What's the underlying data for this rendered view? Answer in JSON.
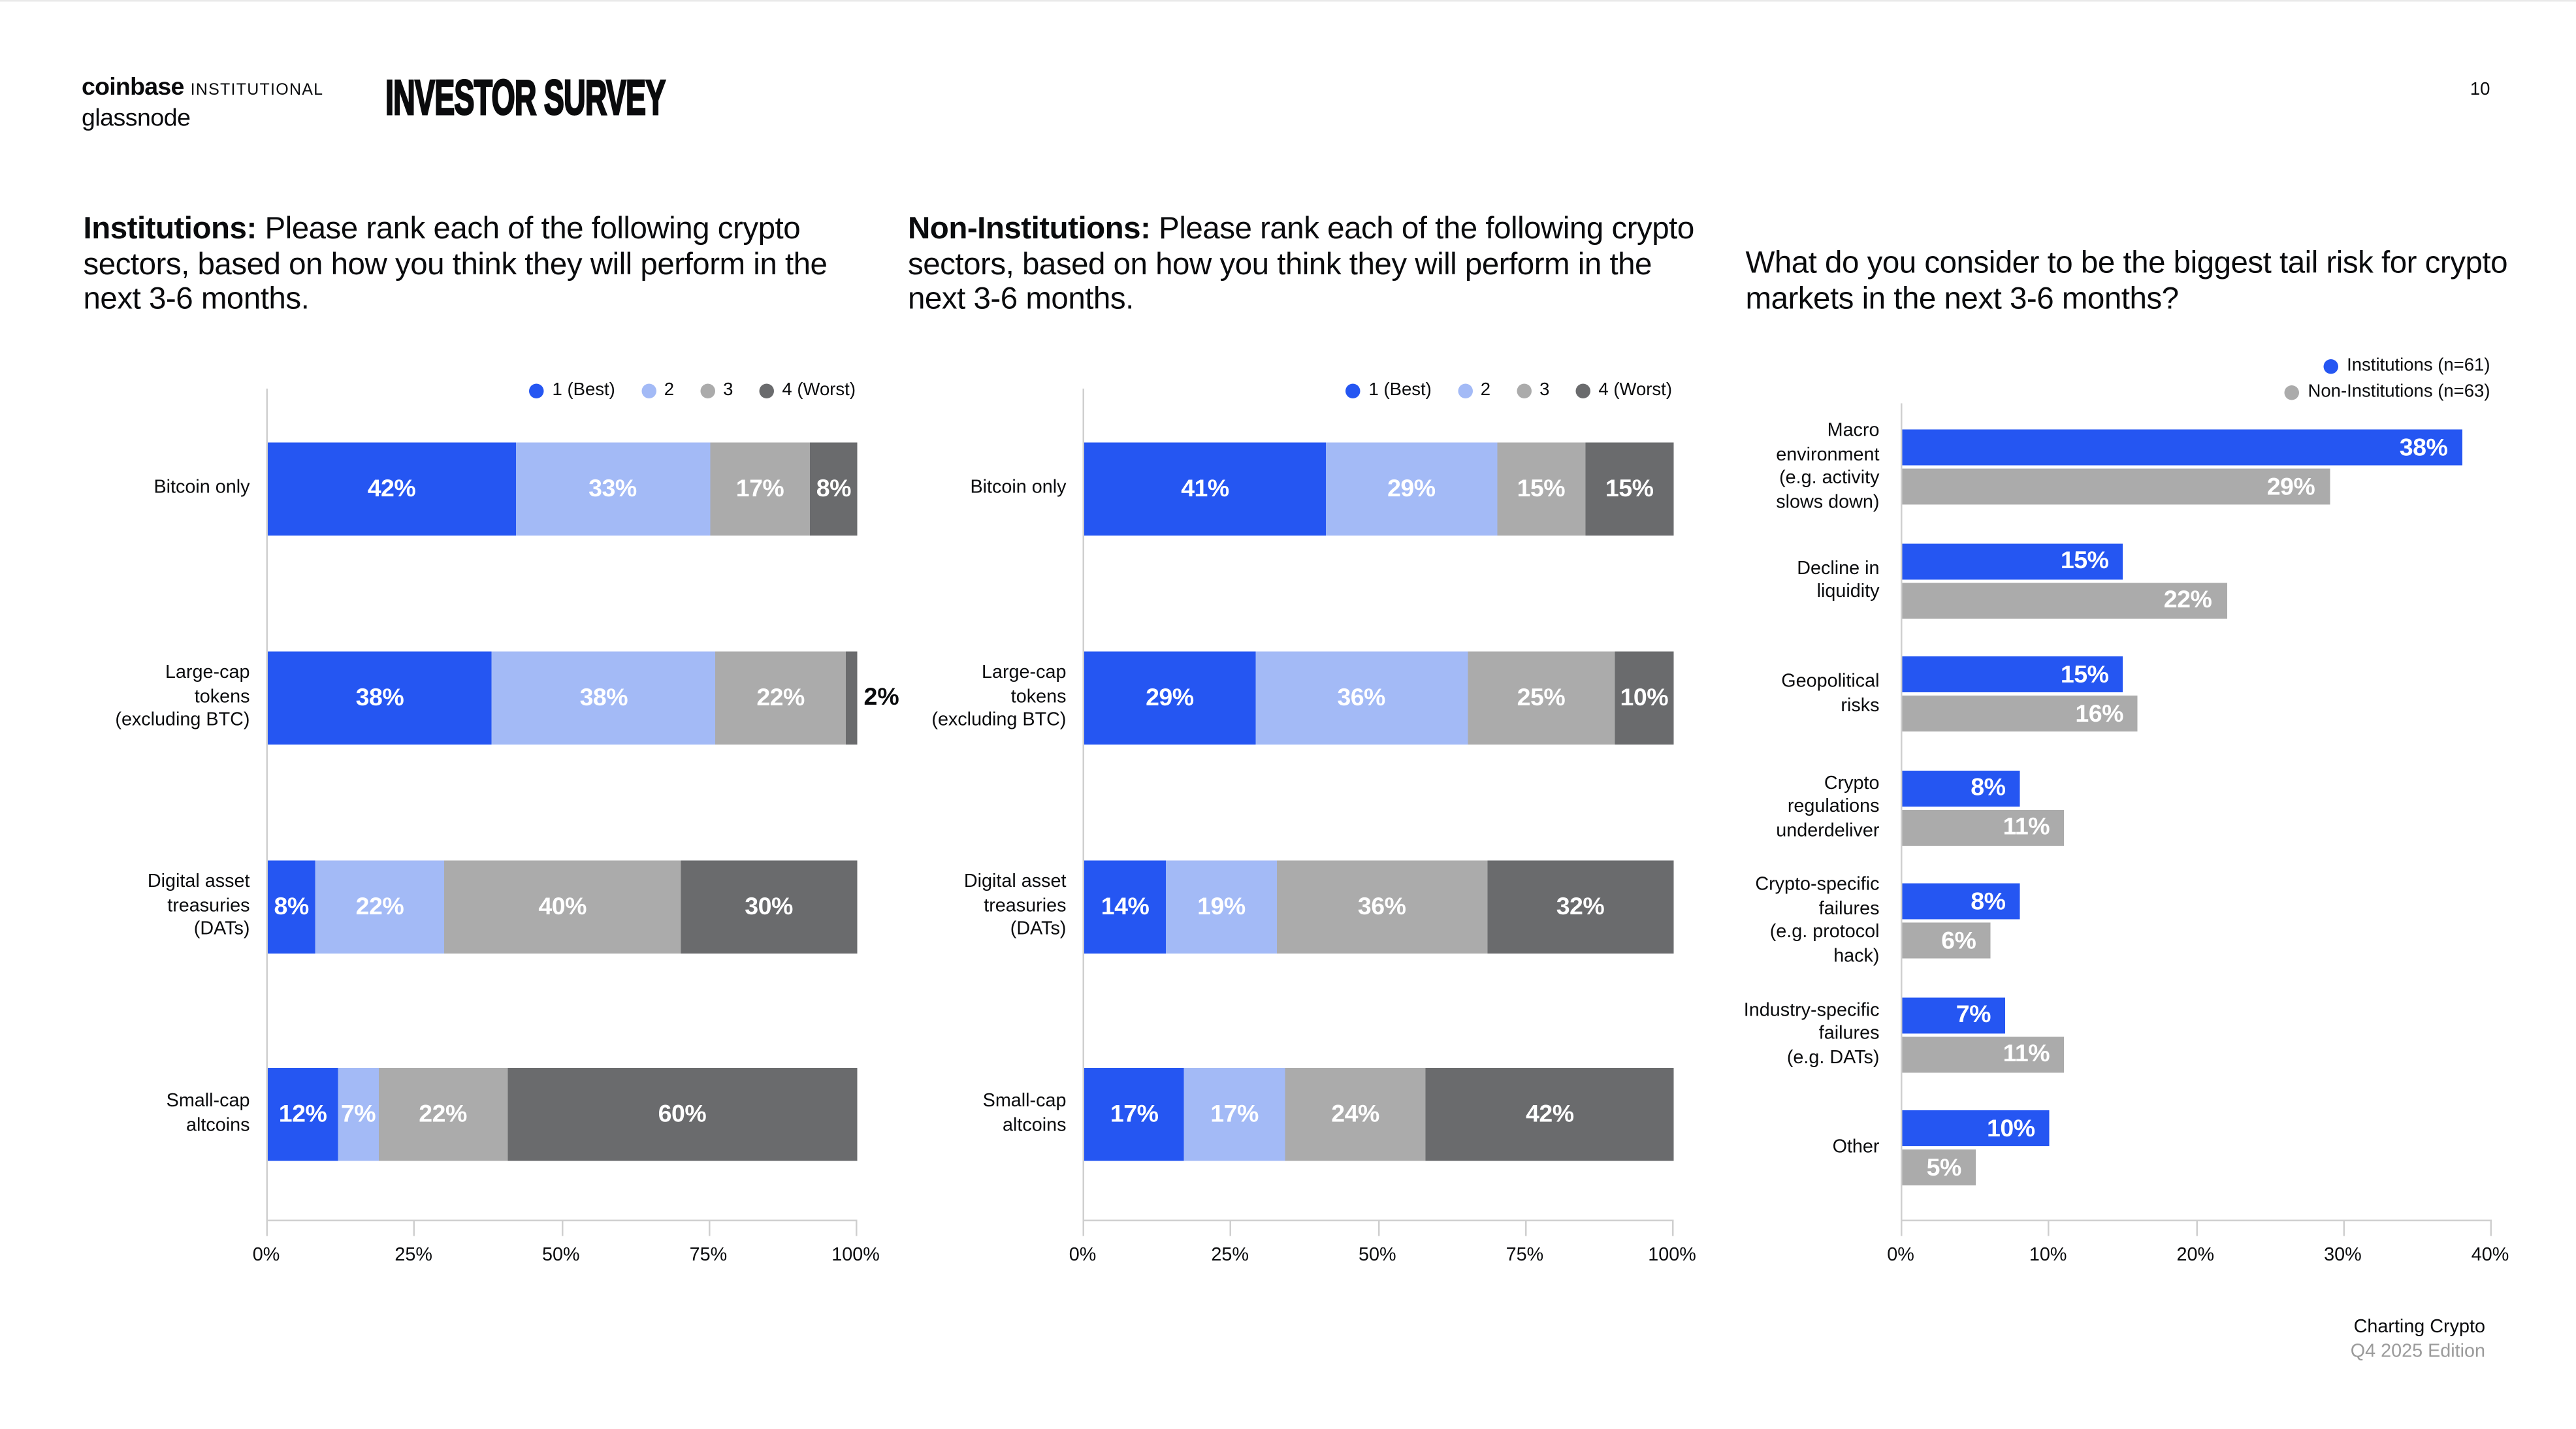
{
  "header": {
    "brand_line1_left": "coinbase",
    "brand_line1_right": "INSTITUTIONAL",
    "brand_line2": "glassnode",
    "doc_title": "INVESTOR SURVEY",
    "page_number": "10"
  },
  "footer": {
    "line1": "Charting Crypto",
    "line2": "Q4 2025 Edition"
  },
  "colors": {
    "blue": "#2556F2",
    "light_blue": "#A3BAF6",
    "gray": "#ABABAB",
    "dark_gray": "#6A6B6D",
    "axis": "#CFCFCF",
    "text": "#0A0B0D",
    "muted": "#9B9B9B"
  },
  "chart_data": [
    {
      "type": "bar",
      "variant": "stacked-horizontal",
      "title_bold": "Institutions:",
      "title_rest": " Please rank each of the following crypto sectors, based on how you think they will perform in the next 3-6 months.",
      "legend_position": "top-right",
      "categories": [
        "Bitcoin only",
        "Large-cap tokens (excluding BTC)",
        "Digital asset treasuries (DATs)",
        "Small-cap altcoins"
      ],
      "category_lines": [
        [
          "Bitcoin only"
        ],
        [
          "Large-cap",
          "tokens",
          "(excluding BTC)"
        ],
        [
          "Digital asset",
          "treasuries",
          "(DATs)"
        ],
        [
          "Small-cap",
          "altcoins"
        ]
      ],
      "series": [
        {
          "name": "1 (Best)",
          "color_key": "blue",
          "values": [
            42,
            38,
            8,
            12
          ]
        },
        {
          "name": "2",
          "color_key": "light_blue",
          "values": [
            33,
            38,
            22,
            7
          ]
        },
        {
          "name": "3",
          "color_key": "gray",
          "values": [
            17,
            22,
            40,
            22
          ]
        },
        {
          "name": "4 (Worst)",
          "color_key": "dark_gray",
          "values": [
            8,
            2,
            30,
            60
          ]
        }
      ],
      "value_suffix": "%",
      "xlim": [
        0,
        100
      ],
      "xticks": [
        "0%",
        "25%",
        "50%",
        "75%",
        "100%"
      ],
      "grid": false
    },
    {
      "type": "bar",
      "variant": "stacked-horizontal",
      "title_bold": "Non-Institutions:",
      "title_rest": " Please rank each of the following crypto sectors, based on how you think they will perform in the next 3-6 months.",
      "legend_position": "top-right",
      "categories": [
        "Bitcoin only",
        "Large-cap tokens (excluding BTC)",
        "Digital asset treasuries (DATs)",
        "Small-cap altcoins"
      ],
      "category_lines": [
        [
          "Bitcoin only"
        ],
        [
          "Large-cap",
          "tokens",
          "(excluding BTC)"
        ],
        [
          "Digital asset",
          "treasuries",
          "(DATs)"
        ],
        [
          "Small-cap",
          "altcoins"
        ]
      ],
      "series": [
        {
          "name": "1 (Best)",
          "color_key": "blue",
          "values": [
            41,
            29,
            14,
            17
          ]
        },
        {
          "name": "2",
          "color_key": "light_blue",
          "values": [
            29,
            36,
            19,
            17
          ]
        },
        {
          "name": "3",
          "color_key": "gray",
          "values": [
            15,
            25,
            36,
            24
          ]
        },
        {
          "name": "4 (Worst)",
          "color_key": "dark_gray",
          "values": [
            15,
            10,
            32,
            42
          ]
        }
      ],
      "value_suffix": "%",
      "xlim": [
        0,
        100
      ],
      "xticks": [
        "0%",
        "25%",
        "50%",
        "75%",
        "100%"
      ],
      "grid": false
    },
    {
      "type": "bar",
      "variant": "grouped-horizontal",
      "title_bold": "",
      "title_rest": "What do you consider to be the biggest tail risk for crypto markets in the next 3-6 months?",
      "legend_position": "top-right",
      "categories": [
        "Macro environment (e.g. activity slows down)",
        "Decline in liquidity",
        "Geopolitical risks",
        "Crypto regulations underdeliver",
        "Crypto-specific failures (e.g. protocol hack)",
        "Industry-specific failures (e.g. DATs)",
        "Other"
      ],
      "category_lines": [
        [
          "Macro",
          "environment",
          "(e.g. activity",
          "slows down)"
        ],
        [
          "Decline in",
          "liquidity"
        ],
        [
          "Geopolitical",
          "risks"
        ],
        [
          "Crypto",
          "regulations",
          "underdeliver"
        ],
        [
          "Crypto-specific",
          "failures",
          "(e.g. protocol",
          "hack)"
        ],
        [
          "Industry-specific",
          "failures",
          "(e.g. DATs)"
        ],
        [
          "Other"
        ]
      ],
      "series": [
        {
          "name": "Institutions (n=61)",
          "color_key": "blue",
          "values": [
            38,
            15,
            15,
            8,
            8,
            7,
            10
          ]
        },
        {
          "name": "Non-Institutions (n=63)",
          "color_key": "gray",
          "values": [
            29,
            22,
            16,
            11,
            6,
            11,
            5
          ]
        }
      ],
      "value_suffix": "%",
      "xlim": [
        0,
        40
      ],
      "xticks": [
        "0%",
        "10%",
        "20%",
        "30%",
        "40%"
      ],
      "grid": false
    }
  ]
}
